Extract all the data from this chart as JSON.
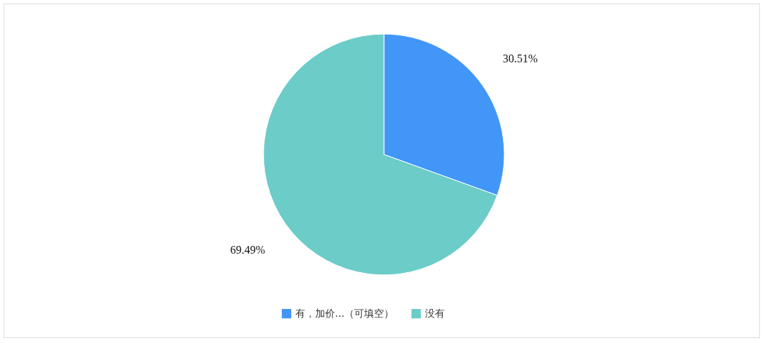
{
  "chart_data": {
    "type": "pie",
    "categories": [
      "有，加价...（可填空）",
      "没有"
    ],
    "values": [
      30.51,
      69.49
    ],
    "colors": [
      "#4196f8",
      "#6bccc8"
    ],
    "value_labels": [
      "30.51%",
      "69.49%"
    ],
    "legend": "bottom"
  }
}
